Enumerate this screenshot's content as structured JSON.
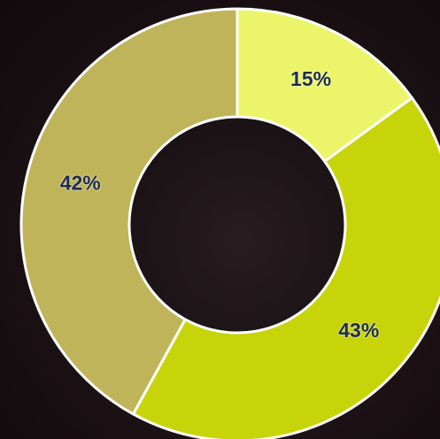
{
  "chart_data": {
    "type": "donut",
    "values": [
      15,
      43,
      42
    ],
    "value_labels": [
      "15%",
      "43%",
      "42%"
    ],
    "colors": [
      "#ecf56a",
      "#c8d40a",
      "#c0b45a"
    ]
  }
}
